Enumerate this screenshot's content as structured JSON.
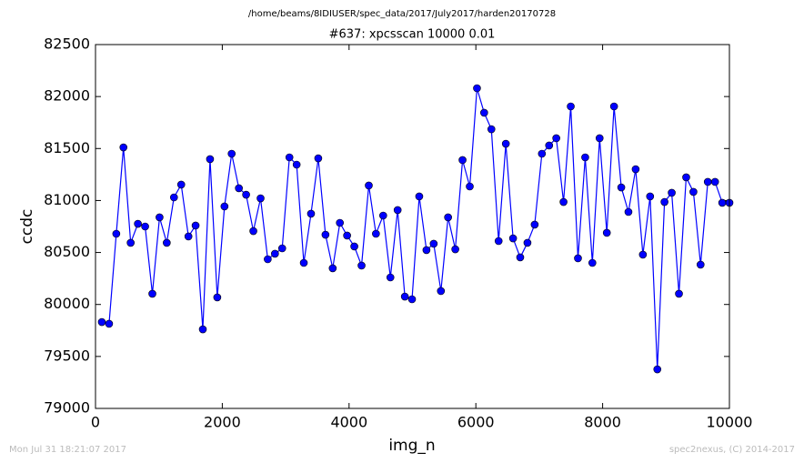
{
  "chart_data": {
    "type": "line",
    "suptitle": "/home/beams/8IDIUSER/spec_data/2017/July2017/harden20170728",
    "title": "#637: xpcsscan 10000 0.01",
    "xlabel": "img_n",
    "ylabel": "ccdc",
    "x": [
      100,
      214,
      328,
      441,
      555,
      669,
      783,
      897,
      1010,
      1124,
      1238,
      1352,
      1466,
      1579,
      1693,
      1807,
      1921,
      2035,
      2148,
      2262,
      2376,
      2490,
      2604,
      2717,
      2831,
      2945,
      3059,
      3173,
      3286,
      3400,
      3514,
      3628,
      3742,
      3855,
      3969,
      4083,
      4197,
      4311,
      4424,
      4538,
      4652,
      4766,
      4880,
      4993,
      5107,
      5221,
      5335,
      5449,
      5562,
      5676,
      5790,
      5904,
      6018,
      6131,
      6245,
      6359,
      6473,
      6587,
      6700,
      6814,
      6928,
      7042,
      7156,
      7269,
      7383,
      7497,
      7611,
      7725,
      7838,
      7952,
      8066,
      8180,
      8294,
      8407,
      8521,
      8635,
      8749,
      8863,
      8976,
      9090,
      9204,
      9318,
      9432,
      9545,
      9659,
      9773,
      9887,
      10000
    ],
    "series": [
      {
        "color": "#0000ff",
        "values": [
          79831,
          79814,
          80680,
          81511,
          80593,
          80776,
          80750,
          80103,
          80838,
          80593,
          81030,
          81153,
          80654,
          80759,
          79761,
          81398,
          80068,
          80943,
          81450,
          81118,
          81056,
          80706,
          81021,
          80435,
          80488,
          80540,
          81415,
          81345,
          80400,
          80873,
          81406,
          80671,
          80348,
          80785,
          80663,
          80558,
          80374,
          81144,
          80680,
          80855,
          80260,
          80908,
          80076,
          80050,
          81039,
          80523,
          80584,
          80129,
          80838,
          80531,
          81389,
          81135,
          82080,
          81844,
          81686,
          80610,
          81546,
          80636,
          80453,
          80593,
          80768,
          81450,
          81529,
          81599,
          80986,
          81905,
          80444,
          81415,
          80400,
          81599,
          80689,
          81905,
          81126,
          80890,
          81301,
          80479,
          81039,
          79376,
          80986,
          81074,
          80103,
          81223,
          81083,
          80383,
          81179,
          81179,
          80978,
          80978
        ]
      }
    ],
    "xlim": [
      0,
      10000
    ],
    "xticks": [
      0,
      2000,
      4000,
      6000,
      8000,
      10000
    ],
    "ylim": [
      79000,
      82500
    ],
    "yticks": [
      79000,
      79500,
      80000,
      80500,
      81000,
      81500,
      82000,
      82500
    ],
    "grid": false,
    "markers": true
  },
  "footer": {
    "left": "Mon Jul 31 18:21:07 2017",
    "right": "spec2nexus, (C) 2014-2017"
  }
}
